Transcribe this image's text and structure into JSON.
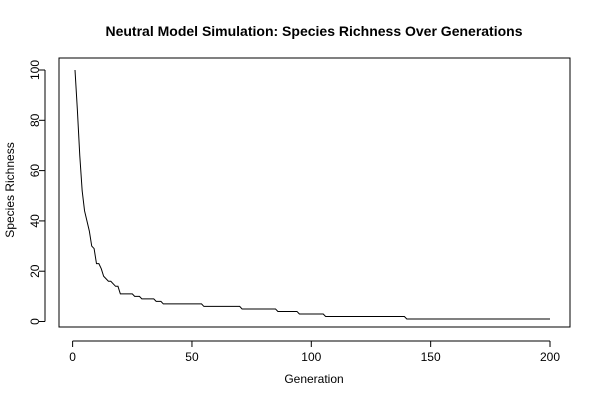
{
  "chart_data": {
    "type": "line",
    "title": "Neutral Model Simulation: Species Richness Over Generations",
    "xlabel": "Generation",
    "ylabel": "Species Richness",
    "xlim": [
      1,
      200
    ],
    "ylim": [
      1,
      100
    ],
    "x_ticks": [
      0,
      50,
      100,
      150,
      200
    ],
    "y_ticks": [
      0,
      20,
      40,
      60,
      80,
      100
    ],
    "grid": false,
    "legend": "none",
    "series": [
      {
        "color": "#000000",
        "points": [
          [
            1,
            100
          ],
          [
            2,
            84
          ],
          [
            3,
            66
          ],
          [
            4,
            52
          ],
          [
            5,
            44
          ],
          [
            6,
            40
          ],
          [
            7,
            36
          ],
          [
            8,
            30
          ],
          [
            9,
            29
          ],
          [
            10,
            23
          ],
          [
            11,
            23
          ],
          [
            12,
            21
          ],
          [
            13,
            18
          ],
          [
            14,
            17
          ],
          [
            15,
            16
          ],
          [
            16,
            16
          ],
          [
            17,
            15
          ],
          [
            18,
            14
          ],
          [
            19,
            14
          ],
          [
            20,
            11
          ],
          [
            21,
            11
          ],
          [
            22,
            11
          ],
          [
            23,
            11
          ],
          [
            24,
            11
          ],
          [
            25,
            11
          ],
          [
            26,
            10
          ],
          [
            27,
            10
          ],
          [
            28,
            10
          ],
          [
            29,
            9
          ],
          [
            30,
            9
          ],
          [
            31,
            9
          ],
          [
            32,
            9
          ],
          [
            33,
            9
          ],
          [
            34,
            9
          ],
          [
            35,
            8
          ],
          [
            36,
            8
          ],
          [
            37,
            8
          ],
          [
            38,
            7
          ],
          [
            40,
            7
          ],
          [
            50,
            7
          ],
          [
            54,
            7
          ],
          [
            55,
            6
          ],
          [
            60,
            6
          ],
          [
            65,
            6
          ],
          [
            70,
            6
          ],
          [
            71,
            5
          ],
          [
            75,
            5
          ],
          [
            80,
            5
          ],
          [
            85,
            5
          ],
          [
            86,
            4
          ],
          [
            90,
            4
          ],
          [
            94,
            4
          ],
          [
            95,
            3
          ],
          [
            100,
            3
          ],
          [
            105,
            3
          ],
          [
            106,
            2
          ],
          [
            110,
            2
          ],
          [
            120,
            2
          ],
          [
            130,
            2
          ],
          [
            139,
            2
          ],
          [
            140,
            1
          ],
          [
            150,
            1
          ],
          [
            160,
            1
          ],
          [
            170,
            1
          ],
          [
            180,
            1
          ],
          [
            190,
            1
          ],
          [
            200,
            1
          ]
        ]
      }
    ]
  }
}
